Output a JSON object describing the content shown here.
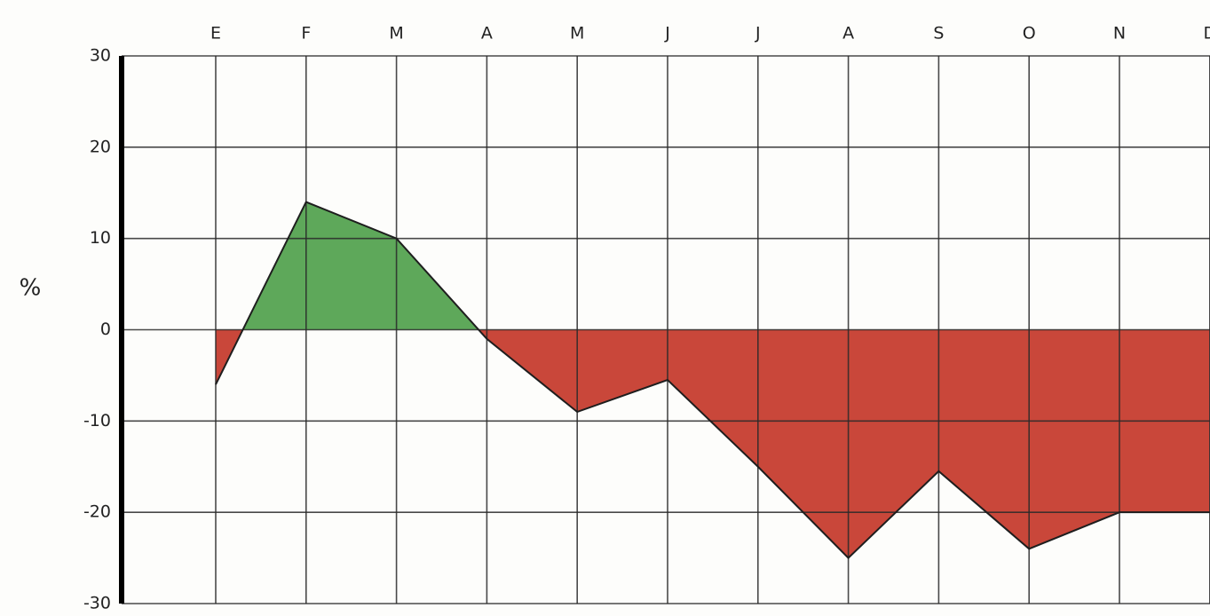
{
  "chart_data": {
    "type": "area",
    "y_label": "%",
    "categories": [
      "E",
      "F",
      "M",
      "A",
      "M",
      "J",
      "J",
      "A",
      "S",
      "O",
      "N",
      "D"
    ],
    "values": [
      -6,
      14,
      10,
      -1,
      -9,
      -5.5,
      -15,
      -25,
      -15.5,
      -24,
      -20,
      -20
    ],
    "positive_color": "#5ea85a",
    "negative_color": "#c9473a",
    "ylim": [
      -30,
      30
    ],
    "yticks": [
      -30,
      -20,
      -10,
      0,
      10,
      20,
      30
    ],
    "grid": true
  }
}
